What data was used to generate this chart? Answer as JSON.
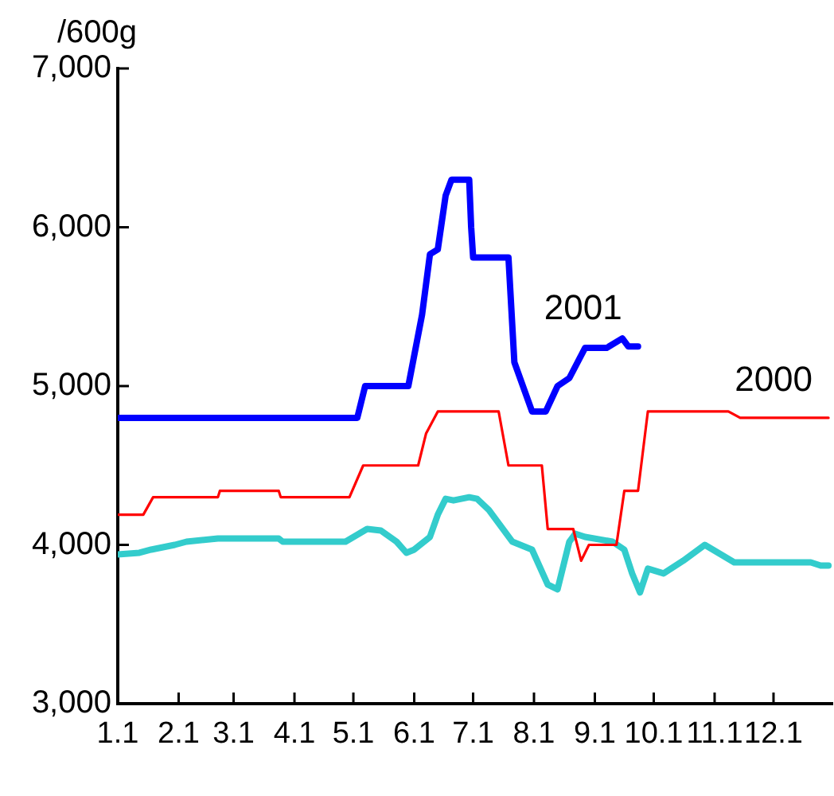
{
  "chart_data": {
    "type": "line",
    "ylabel": "/600g",
    "xlim": [
      "--01-01",
      "--12-31"
    ],
    "ylim": [
      3000,
      7000
    ],
    "xticks": [
      {
        "value": "--01-01",
        "label": "1.1"
      },
      {
        "value": "--02-01",
        "label": "2.1"
      },
      {
        "value": "--03-01",
        "label": "3.1"
      },
      {
        "value": "--04-01",
        "label": "4.1"
      },
      {
        "value": "--05-01",
        "label": "5.1"
      },
      {
        "value": "--06-01",
        "label": "6.1"
      },
      {
        "value": "--07-01",
        "label": "7.1"
      },
      {
        "value": "--08-01",
        "label": "8.1"
      },
      {
        "value": "--09-01",
        "label": "9.1"
      },
      {
        "value": "--10-01",
        "label": "10.1"
      },
      {
        "value": "--11-01",
        "label": "11.1"
      },
      {
        "value": "--12-01",
        "label": "12.1"
      }
    ],
    "yticks": [
      {
        "value": 3000,
        "label": "3,000"
      },
      {
        "value": 4000,
        "label": "4,000"
      },
      {
        "value": 5000,
        "label": "5,000"
      },
      {
        "value": 6000,
        "label": "6,000"
      },
      {
        "value": 7000,
        "label": "7,000"
      }
    ],
    "grid": false,
    "legend": false,
    "marker": "none",
    "line_style": "solid",
    "series": [
      {
        "name": "2001",
        "color": "#0000ff",
        "x": [
          "--01-01",
          "--05-03",
          "--05-07",
          "--05-29",
          "--06-05",
          "--06-09",
          "--06-13",
          "--06-17",
          "--06-20",
          "--06-29",
          "--06-30",
          "--07-01",
          "--07-19",
          "--07-22",
          "--07-31",
          "--08-07",
          "--08-13",
          "--08-19",
          "--08-27",
          "--09-07",
          "--09-15",
          "--09-18",
          "--09-23"
        ],
        "values": [
          4800,
          4800,
          5000,
          5000,
          5450,
          5830,
          5860,
          6200,
          6300,
          6300,
          6000,
          5810,
          5810,
          5150,
          4840,
          4840,
          5000,
          5050,
          5240,
          5240,
          5300,
          5250,
          5250
        ]
      },
      {
        "name": "2000",
        "color": "#ff0000",
        "x": [
          "--01-01",
          "--01-14",
          "--01-19",
          "--02-21",
          "--02-22",
          "--03-24",
          "--03-25",
          "--04-29",
          "--05-06",
          "--06-03",
          "--06-07",
          "--06-13",
          "--07-14",
          "--07-19",
          "--08-05",
          "--08-08",
          "--08-21",
          "--08-25",
          "--08-29",
          "--09-12",
          "--09-16",
          "--09-23",
          "--09-28",
          "--11-08",
          "--11-14",
          "--12-29"
        ],
        "values": [
          4190,
          4190,
          4300,
          4300,
          4340,
          4340,
          4300,
          4300,
          4500,
          4500,
          4700,
          4840,
          4840,
          4500,
          4500,
          4100,
          4100,
          3900,
          4000,
          4000,
          4340,
          4340,
          4840,
          4840,
          4800,
          4800
        ]
      },
      {
        "color": "#33cccc",
        "x": [
          "--01-01",
          "--01-12",
          "--01-18",
          "--01-30",
          "--02-05",
          "--02-21",
          "--03-24",
          "--03-26",
          "--04-27",
          "--05-08",
          "--05-15",
          "--05-23",
          "--05-28",
          "--06-01",
          "--06-09",
          "--06-13",
          "--06-17",
          "--06-21",
          "--06-29",
          "--07-03",
          "--07-09",
          "--07-21",
          "--07-31",
          "--08-08",
          "--08-13",
          "--08-19",
          "--08-22",
          "--08-27",
          "--09-10",
          "--09-16",
          "--09-20",
          "--09-24",
          "--09-28",
          "--10-06",
          "--10-16",
          "--10-27",
          "--11-11",
          "--12-20",
          "--12-25",
          "--12-29"
        ],
        "values": [
          3940,
          3950,
          3970,
          4000,
          4020,
          4040,
          4040,
          4020,
          4020,
          4100,
          4090,
          4020,
          3950,
          3970,
          4050,
          4190,
          4290,
          4280,
          4300,
          4290,
          4220,
          4020,
          3970,
          3750,
          3720,
          4020,
          4070,
          4050,
          4020,
          3970,
          3820,
          3700,
          3850,
          3820,
          3900,
          4000,
          3890,
          3890,
          3870,
          3870
        ]
      }
    ]
  }
}
